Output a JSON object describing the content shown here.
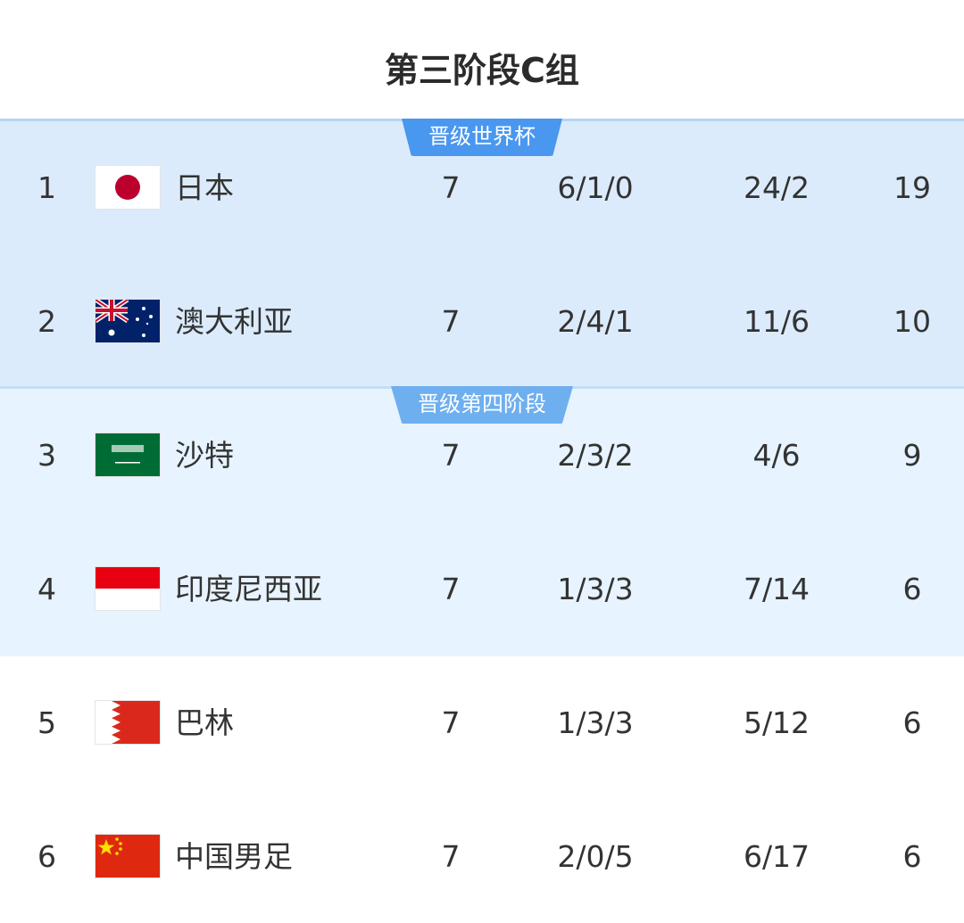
{
  "title": "第三阶段C组",
  "zones": [
    {
      "label": "晋级世界杯",
      "color": "#4a97f0"
    },
    {
      "label": "晋级第四阶段",
      "color": "#6eaff0"
    }
  ],
  "rows": [
    {
      "rank": "1",
      "flag": "japan-flag",
      "team": "日本",
      "played": "7",
      "wdl": "6/1/0",
      "goals": "24/2",
      "points": "19"
    },
    {
      "rank": "2",
      "flag": "australia-flag",
      "team": "澳大利亚",
      "played": "7",
      "wdl": "2/4/1",
      "goals": "11/6",
      "points": "10"
    },
    {
      "rank": "3",
      "flag": "saudi-arabia-flag",
      "team": "沙特",
      "played": "7",
      "wdl": "2/3/2",
      "goals": "4/6",
      "points": "9"
    },
    {
      "rank": "4",
      "flag": "indonesia-flag",
      "team": "印度尼西亚",
      "played": "7",
      "wdl": "1/3/3",
      "goals": "7/14",
      "points": "6"
    },
    {
      "rank": "5",
      "flag": "bahrain-flag",
      "team": "巴林",
      "played": "7",
      "wdl": "1/3/3",
      "goals": "5/12",
      "points": "6"
    },
    {
      "rank": "6",
      "flag": "china-flag",
      "team": "中国男足",
      "played": "7",
      "wdl": "2/0/5",
      "goals": "6/17",
      "points": "6"
    }
  ]
}
